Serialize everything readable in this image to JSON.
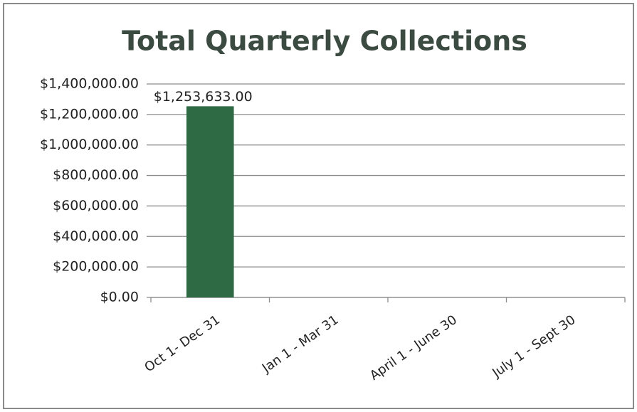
{
  "chart_data": {
    "type": "bar",
    "title": "Total Quarterly Collections",
    "categories": [
      "Oct 1- Dec 31",
      "Jan 1 - Mar 31",
      "April 1 - June 30",
      "July 1 - Sept 30"
    ],
    "values": [
      1253633,
      null,
      null,
      null
    ],
    "value_labels": [
      "$1,253,633.00",
      null,
      null,
      null
    ],
    "color": "#2e6b45",
    "ylim": [
      0,
      1400000
    ],
    "yticks": [
      {
        "value": 0,
        "label": "$0.00"
      },
      {
        "value": 200000,
        "label": "$200,000.00"
      },
      {
        "value": 400000,
        "label": "$400,000.00"
      },
      {
        "value": 600000,
        "label": "$600,000.00"
      },
      {
        "value": 800000,
        "label": "$800,000.00"
      },
      {
        "value": 1000000,
        "label": "$1,000,000.00"
      },
      {
        "value": 1200000,
        "label": "$1,200,000.00"
      },
      {
        "value": 1400000,
        "label": "$1,400,000.00"
      }
    ],
    "grid": true
  }
}
